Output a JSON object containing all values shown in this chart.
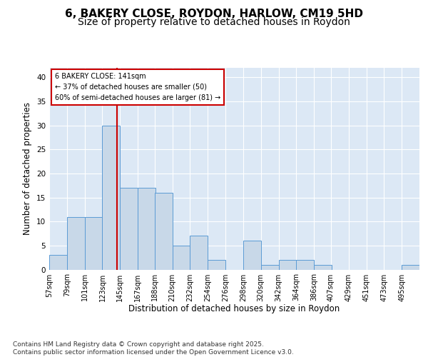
{
  "title_line1": "6, BAKERY CLOSE, ROYDON, HARLOW, CM19 5HD",
  "title_line2": "Size of property relative to detached houses in Roydon",
  "xlabel": "Distribution of detached houses by size in Roydon",
  "ylabel": "Number of detached properties",
  "bar_color": "#c8d8e8",
  "bar_edge_color": "#5b9bd5",
  "vline_color": "#cc0000",
  "vline_x": 141,
  "categories": [
    "57sqm",
    "79sqm",
    "101sqm",
    "123sqm",
    "145sqm",
    "167sqm",
    "188sqm",
    "210sqm",
    "232sqm",
    "254sqm",
    "276sqm",
    "298sqm",
    "320sqm",
    "342sqm",
    "364sqm",
    "386sqm",
    "407sqm",
    "429sqm",
    "451sqm",
    "473sqm",
    "495sqm"
  ],
  "bin_edges": [
    57,
    79,
    101,
    123,
    145,
    167,
    188,
    210,
    232,
    254,
    276,
    298,
    320,
    342,
    364,
    386,
    407,
    429,
    451,
    473,
    495
  ],
  "bar_heights": [
    3,
    11,
    11,
    30,
    17,
    17,
    16,
    5,
    7,
    2,
    0,
    6,
    1,
    2,
    2,
    1,
    0,
    0,
    0,
    0,
    1
  ],
  "ylim": [
    0,
    42
  ],
  "yticks": [
    0,
    5,
    10,
    15,
    20,
    25,
    30,
    35,
    40
  ],
  "annotation_text": "6 BAKERY CLOSE: 141sqm\n← 37% of detached houses are smaller (50)\n60% of semi-detached houses are larger (81) →",
  "annotation_box_color": "#ffffff",
  "annotation_box_edge": "#cc0000",
  "background_color": "#dce8f5",
  "footer_text": "Contains HM Land Registry data © Crown copyright and database right 2025.\nContains public sector information licensed under the Open Government Licence v3.0.",
  "grid_color": "#ffffff",
  "title_fontsize": 11,
  "subtitle_fontsize": 10,
  "axis_label_fontsize": 8.5,
  "tick_fontsize": 7.5,
  "footer_fontsize": 6.5
}
